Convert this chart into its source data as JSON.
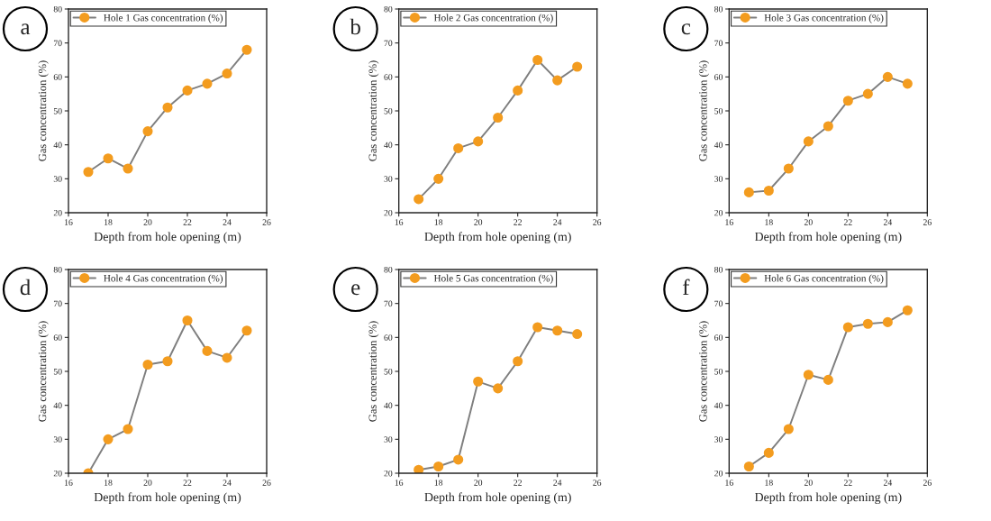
{
  "chart_data": [
    {
      "type": "line",
      "xlabel": "Depth from hole opening (m)",
      "ylabel": "Gas concentration (%)",
      "annotations": [
        "a"
      ],
      "xlim": [
        16,
        26
      ],
      "xticks": [
        16,
        18,
        20,
        22,
        24,
        26
      ],
      "ylim": [
        20,
        80
      ],
      "yticks": [
        20,
        30,
        40,
        50,
        60,
        70,
        80
      ],
      "x": [
        17,
        18,
        19,
        20,
        21,
        22,
        23,
        24,
        25
      ],
      "marker": "circle",
      "legend": "top left",
      "grid": false,
      "series": [
        {
          "name": "Hole 1 Gas concentration (%)",
          "color": "#f39c1f",
          "values": [
            32,
            36,
            33,
            44,
            51,
            56,
            58,
            61,
            68
          ]
        }
      ]
    },
    {
      "type": "line",
      "xlabel": "Depth from hole opening (m)",
      "ylabel": "Gas concentration (%)",
      "annotations": [
        "b"
      ],
      "xlim": [
        16,
        26
      ],
      "xticks": [
        16,
        18,
        20,
        22,
        24,
        26
      ],
      "ylim": [
        20,
        80
      ],
      "yticks": [
        20,
        30,
        40,
        50,
        60,
        70,
        80
      ],
      "x": [
        17,
        18,
        19,
        20,
        21,
        22,
        23,
        24,
        25
      ],
      "marker": "circle",
      "legend": "top left",
      "grid": false,
      "series": [
        {
          "name": "Hole 2 Gas concentration (%)",
          "color": "#f39c1f",
          "values": [
            24,
            30,
            39,
            41,
            48,
            56,
            65,
            59,
            63
          ]
        }
      ]
    },
    {
      "type": "line",
      "xlabel": "Depth from hole opening (m)",
      "ylabel": "Gas concentration (%)",
      "annotations": [
        "c"
      ],
      "xlim": [
        16,
        26
      ],
      "xticks": [
        16,
        18,
        20,
        22,
        24,
        26
      ],
      "ylim": [
        20,
        80
      ],
      "yticks": [
        20,
        30,
        40,
        50,
        60,
        70,
        80
      ],
      "x": [
        17,
        18,
        19,
        20,
        21,
        22,
        23,
        24,
        25
      ],
      "marker": "circle",
      "legend": "top left",
      "grid": false,
      "series": [
        {
          "name": "Hole 3 Gas concentration (%)",
          "color": "#f39c1f",
          "values": [
            26,
            26.5,
            33,
            41,
            45.5,
            53,
            55,
            60,
            58
          ]
        }
      ]
    },
    {
      "type": "line",
      "xlabel": "Depth from hole opening (m)",
      "ylabel": "Gas concentration (%)",
      "annotations": [
        "d"
      ],
      "xlim": [
        16,
        26
      ],
      "xticks": [
        16,
        18,
        20,
        22,
        24,
        26
      ],
      "ylim": [
        20,
        80
      ],
      "yticks": [
        20,
        30,
        40,
        50,
        60,
        70,
        80
      ],
      "x": [
        17,
        18,
        19,
        20,
        21,
        22,
        23,
        24,
        25
      ],
      "marker": "circle",
      "legend": "top left",
      "grid": false,
      "series": [
        {
          "name": "Hole 4 Gas concentration (%)",
          "color": "#f39c1f",
          "values": [
            20,
            30,
            33,
            52,
            53,
            65,
            56,
            54,
            62
          ]
        }
      ]
    },
    {
      "type": "line",
      "xlabel": "Depth from hole opening (m)",
      "ylabel": "Gas concentration (%)",
      "annotations": [
        "e"
      ],
      "xlim": [
        16,
        26
      ],
      "xticks": [
        16,
        18,
        20,
        22,
        24,
        26
      ],
      "ylim": [
        20,
        80
      ],
      "yticks": [
        20,
        30,
        40,
        50,
        60,
        70,
        80
      ],
      "x": [
        17,
        18,
        19,
        20,
        21,
        22,
        23,
        24,
        25
      ],
      "marker": "circle",
      "legend": "top left",
      "grid": false,
      "series": [
        {
          "name": "Hole 5 Gas concentration (%)",
          "color": "#f39c1f",
          "values": [
            21,
            22,
            24,
            47,
            45,
            53,
            63,
            62,
            61
          ]
        }
      ]
    },
    {
      "type": "line",
      "xlabel": "Depth from hole opening (m)",
      "ylabel": "Gas concentration (%)",
      "annotations": [
        "f"
      ],
      "xlim": [
        16,
        26
      ],
      "xticks": [
        16,
        18,
        20,
        22,
        24,
        26
      ],
      "ylim": [
        20,
        80
      ],
      "yticks": [
        20,
        30,
        40,
        50,
        60,
        70,
        80
      ],
      "x": [
        17,
        18,
        19,
        20,
        21,
        22,
        23,
        24,
        25
      ],
      "marker": "circle",
      "legend": "top left",
      "grid": false,
      "series": [
        {
          "name": "Hole 6 Gas concentration (%)",
          "color": "#f39c1f",
          "values": [
            22,
            26,
            33,
            49,
            47.5,
            63,
            64,
            64.5,
            68
          ]
        }
      ]
    }
  ]
}
